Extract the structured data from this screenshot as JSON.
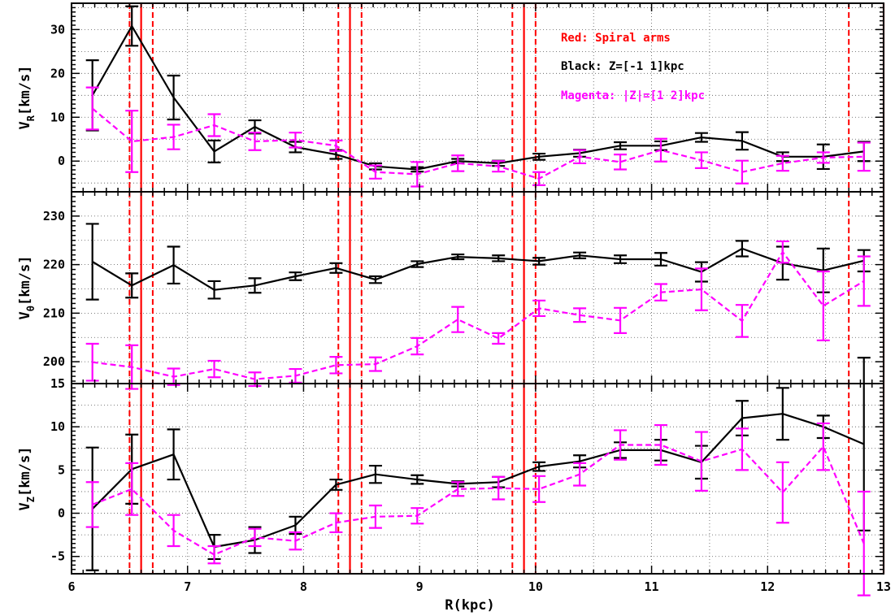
{
  "chart_data": {
    "type": "line",
    "xlabel": "R(kpc)",
    "xlim": [
      6,
      13
    ],
    "x_ticks": [
      "6",
      "7",
      "8",
      "9",
      "10",
      "11",
      "12",
      "13"
    ],
    "legend": {
      "placement": "top-right",
      "entries": [
        {
          "text": "Red: Spiral arms",
          "color": "#ff0000"
        },
        {
          "text": "Black: Z=[-1 1]kpc",
          "color": "#000000"
        },
        {
          "text": "Magenta: |Z|=[1 2]kpc",
          "color": "#ff00ff"
        }
      ]
    },
    "colors": {
      "black": "#000000",
      "magenta": "#ff00ff",
      "red": "#ff0000",
      "grid": "#555555"
    },
    "grid": true,
    "spiral_arms": {
      "solid": [
        6.6,
        8.4,
        9.9,
        13.0
      ],
      "dashed": [
        6.5,
        6.7,
        8.3,
        8.5,
        9.8,
        10.0,
        12.7
      ]
    },
    "panels": [
      {
        "name": "VR",
        "ylabel_main": "V",
        "ylabel_sub": "R",
        "ylabel_rest": "[km/s]",
        "ylim": [
          -7,
          36
        ],
        "y_ticks": [
          0,
          10,
          20,
          30
        ],
        "series": [
          {
            "line": "solid",
            "color": "#000000",
            "x": [
              6.18,
              6.52,
              6.88,
              7.23,
              7.58,
              7.93,
              8.28,
              8.62,
              8.98,
              9.33,
              9.68,
              10.03,
              10.38,
              10.73,
              11.08,
              11.43,
              11.78,
              12.13,
              12.48,
              12.83
            ],
            "y": [
              15,
              30.8,
              14.5,
              2.2,
              7.8,
              3.2,
              1.5,
              -1.2,
              -1.9,
              0,
              -0.5,
              1,
              1.8,
              3.5,
              3.5,
              5.4,
              4.6,
              1,
              1,
              2.2
            ],
            "err": [
              8,
              4.5,
              5,
              2.5,
              1.5,
              1.2,
              1,
              0.7,
              0.5,
              0.5,
              0.6,
              0.7,
              0.8,
              0.8,
              1,
              1,
              2,
              1,
              2.8,
              2.2
            ]
          },
          {
            "line": "dashed",
            "color": "#ff00ff",
            "x": [
              6.18,
              6.52,
              6.88,
              7.23,
              7.58,
              7.93,
              8.28,
              8.62,
              8.98,
              9.33,
              9.68,
              10.03,
              10.38,
              10.73,
              11.08,
              11.43,
              11.78,
              12.13,
              12.48,
              12.83
            ],
            "y": [
              12,
              4.5,
              5.5,
              8.2,
              4.5,
              4.8,
              3.5,
              -2.5,
              -3,
              -0.5,
              -1.2,
              -4,
              1,
              -0.2,
              2.5,
              0.2,
              -2.5,
              -0.5,
              0.8,
              1
            ],
            "err": [
              4.8,
              7,
              2.8,
              2.5,
              2,
              1.7,
              1.2,
              1.5,
              2.8,
              1.8,
              1.2,
              1.5,
              1.5,
              1.7,
              2.6,
              1.8,
              2.6,
              1.7,
              1.2,
              3.2
            ]
          }
        ]
      },
      {
        "name": "Vtheta",
        "ylabel_main": "V",
        "ylabel_sub": "θ",
        "ylabel_rest": "[km/s]",
        "ylim": [
          195.5,
          235
        ],
        "y_ticks": [
          200,
          210,
          220,
          230
        ],
        "series": [
          {
            "line": "solid",
            "color": "#000000",
            "x": [
              6.18,
              6.52,
              6.88,
              7.23,
              7.58,
              7.93,
              8.28,
              8.62,
              8.98,
              9.33,
              9.68,
              10.03,
              10.38,
              10.73,
              11.08,
              11.43,
              11.78,
              12.13,
              12.48,
              12.83
            ],
            "y": [
              220.6,
              215.7,
              219.9,
              214.8,
              215.7,
              217.6,
              219.3,
              216.9,
              220.1,
              221.6,
              221.3,
              220.7,
              221.9,
              221.1,
              221.1,
              218.5,
              223.3,
              220.3,
              218.8,
              220.8
            ],
            "err": [
              7.8,
              2.5,
              3.8,
              1.8,
              1.5,
              0.8,
              1,
              0.7,
              0.6,
              0.5,
              0.6,
              0.7,
              0.6,
              0.8,
              1.3,
              2,
              1.6,
              3.4,
              4.5,
              2.2
            ]
          },
          {
            "line": "dashed",
            "color": "#ff00ff",
            "x": [
              6.18,
              6.52,
              6.88,
              7.23,
              7.58,
              7.93,
              8.28,
              8.62,
              8.98,
              9.33,
              9.68,
              10.03,
              10.38,
              10.73,
              11.08,
              11.43,
              11.78,
              12.13,
              12.48,
              12.83
            ],
            "y": [
              199.9,
              198.9,
              196.9,
              198.5,
              196.4,
              197.1,
              199.3,
              199.5,
              203.2,
              208.7,
              204.8,
              211,
              209.6,
              208.5,
              214.3,
              214.9,
              208.4,
              222.6,
              211.5,
              216.6
            ],
            "err": [
              3.8,
              4.5,
              1.7,
              1.7,
              1.4,
              1.4,
              1.7,
              1.4,
              1.7,
              2.6,
              1.1,
              1.6,
              1.4,
              2.6,
              1.7,
              4.3,
              3.3,
              2.2,
              7.1,
              5.1
            ]
          }
        ]
      },
      {
        "name": "Vz",
        "ylabel_main": "V",
        "ylabel_sub": "Z",
        "ylabel_rest": "[km/s]",
        "ylim": [
          -7,
          15
        ],
        "y_ticks": [
          -5,
          0,
          5,
          10,
          15
        ],
        "series": [
          {
            "line": "solid",
            "color": "#000000",
            "x": [
              6.18,
              6.52,
              6.88,
              7.23,
              7.58,
              7.93,
              8.28,
              8.62,
              8.98,
              9.33,
              9.68,
              10.03,
              10.38,
              10.73,
              11.08,
              11.43,
              11.78,
              12.13,
              12.48,
              12.83
            ],
            "y": [
              0.5,
              5.1,
              6.8,
              -3.9,
              -3.1,
              -1.4,
              3.3,
              4.5,
              3.9,
              3.4,
              3.6,
              5.4,
              6,
              7.3,
              7.3,
              5.9,
              11,
              11.5,
              10,
              8
            ],
            "err": [
              7.1,
              4,
              2.9,
              1.4,
              1.5,
              1,
              0.6,
              1,
              0.5,
              0.3,
              0.6,
              0.5,
              0.7,
              0.9,
              1.2,
              1.9,
              2,
              3,
              1.3,
              10
            ]
          },
          {
            "line": "dashed",
            "color": "#ff00ff",
            "x": [
              6.18,
              6.52,
              6.88,
              7.23,
              7.58,
              7.93,
              8.28,
              8.62,
              8.98,
              9.33,
              9.68,
              10.03,
              10.38,
              10.73,
              11.08,
              11.43,
              11.78,
              12.13,
              12.48,
              12.83
            ],
            "y": [
              1,
              2.8,
              -2,
              -4.8,
              -2.8,
              -3.2,
              -1.1,
              -0.4,
              -0.3,
              2.8,
              2.9,
              2.8,
              4.5,
              7.9,
              7.9,
              6,
              7.4,
              2.4,
              7.7,
              -3.5
            ],
            "err": [
              2.6,
              3,
              1.8,
              1,
              1,
              1,
              1.1,
              1.3,
              0.9,
              0.8,
              1.3,
              1.5,
              1.3,
              1.7,
              2.3,
              3.4,
              2.4,
              3.5,
              2.7,
              6
            ]
          }
        ]
      }
    ]
  }
}
